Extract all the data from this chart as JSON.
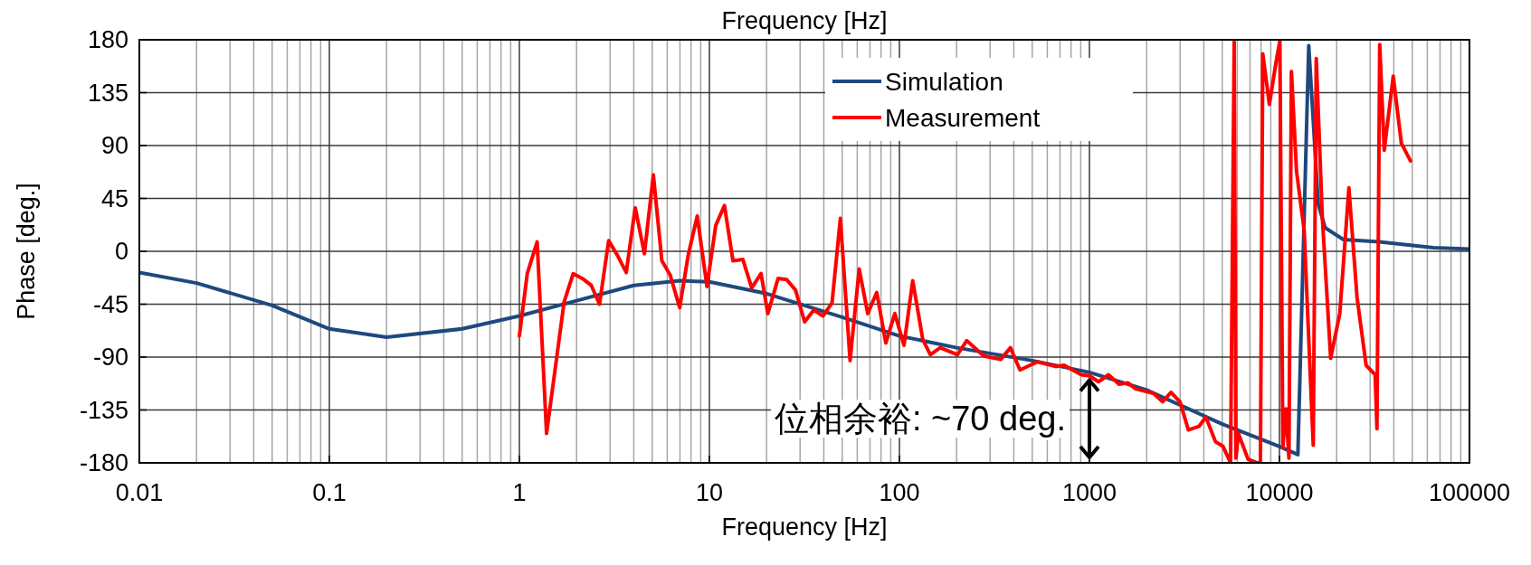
{
  "chart_data": {
    "type": "line",
    "xlabel": "Frequency [Hz]",
    "x2label": "Frequency [Hz]",
    "ylabel": "Phase [deg.]",
    "log": "x",
    "xlim": [
      0.01,
      100000
    ],
    "xticks": [
      0.01,
      0.1,
      1,
      10,
      100,
      1000,
      10000,
      100000
    ],
    "ylim": [
      -180,
      180
    ],
    "yticks": [
      -180,
      -135,
      -90,
      -45,
      0,
      45,
      90,
      135,
      180
    ],
    "grid": true,
    "legend": "top right",
    "marker": "none",
    "line_style": "solid",
    "series": [
      {
        "name": "Simulation",
        "color": "#1f497d",
        "x": [
          0.01,
          0.02,
          0.05,
          0.1,
          0.2,
          0.5,
          1,
          2,
          4,
          7,
          10,
          20,
          50,
          100,
          200,
          500,
          1000,
          2000,
          5000,
          10000,
          12500,
          14260,
          16000,
          17400,
          21700,
          33500,
          64600,
          100000
        ],
        "values": [
          -18,
          -27,
          -46,
          -66,
          -73,
          -66,
          -55,
          -42,
          -29,
          -25,
          -26,
          -36,
          -56,
          -72,
          -82,
          -93,
          -103,
          -118,
          -147,
          -166,
          -173,
          175,
          40,
          20,
          10,
          8,
          3,
          2
        ]
      },
      {
        "name": "Measurement",
        "color": "#ff0000",
        "x": [
          1,
          1.1,
          1.24,
          1.39,
          1.72,
          1.92,
          2.14,
          2.39,
          2.64,
          2.95,
          3.27,
          3.65,
          4.07,
          4.55,
          5.07,
          5.62,
          6.21,
          6.98,
          7.74,
          8.63,
          9.71,
          10.8,
          12.0,
          13.3,
          15.0,
          16.7,
          18.7,
          20.3,
          23.0,
          25.5,
          28.4,
          31.7,
          35.4,
          39.6,
          44.2,
          48.9,
          55.0,
          61.4,
          68.1,
          76.0,
          84.8,
          94.6,
          105.7,
          117.5,
          132.7,
          145.5,
          164,
          202,
          226,
          278,
          341,
          384,
          431,
          533,
          664,
          736,
          906,
          1000,
          1116,
          1260,
          1431,
          1597,
          1750,
          2178,
          2432,
          2685,
          2995,
          3318,
          3770,
          4100,
          4605,
          5050,
          5530,
          5780,
          5900,
          6080,
          6840,
          7640,
          7940,
          8170,
          8850,
          9620,
          10050,
          10420,
          10810,
          11220,
          11560,
          12300,
          13490,
          15060,
          15620,
          16800,
          18600,
          20770,
          23200,
          25600,
          28580,
          31880,
          32600,
          33700,
          35600,
          39700,
          43800,
          48900
        ],
        "values": [
          -72,
          -19,
          8,
          -155,
          -43,
          -19,
          -23,
          -29,
          -45,
          9,
          -3,
          -18,
          37,
          -2,
          65,
          -8,
          -20,
          -48,
          -3,
          30,
          -30,
          22,
          39,
          -8,
          -7,
          -31,
          -19,
          -53,
          -23,
          -24,
          -33,
          -60,
          -50,
          -55,
          -44,
          28,
          -93,
          -15,
          -53,
          -35,
          -78,
          -53,
          -80,
          -25,
          -75,
          -88,
          -82,
          -88,
          -76,
          -89,
          -92,
          -82,
          -101,
          -94,
          -98,
          -97,
          -105,
          -106,
          -111,
          -105,
          -113,
          -112,
          -117,
          -121,
          -128,
          -120,
          -128,
          -152,
          -149,
          -141,
          -162,
          -166,
          -180,
          178,
          -176,
          -155,
          -177,
          -180,
          -180,
          168,
          125,
          162,
          179,
          -167,
          -134,
          -176,
          153,
          68,
          18,
          -165,
          164,
          30,
          -91,
          -53,
          54,
          -39,
          -97,
          -105,
          -151,
          176,
          86,
          149,
          92,
          77
        ]
      }
    ],
    "annotations": [
      {
        "text": "位相余裕: ~70 deg.",
        "x": 1000,
        "y": -105
      }
    ]
  }
}
